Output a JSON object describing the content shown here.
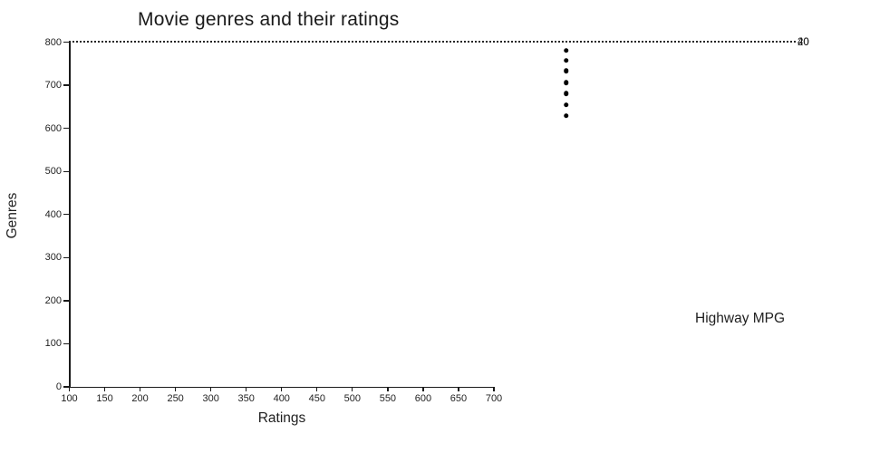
{
  "chart_data": {
    "type": "scatter",
    "title": "Movie genres and their ratings",
    "xlabel": "Ratings",
    "ylabel": "Genres",
    "xlim": [
      100,
      700
    ],
    "ylim": [
      0,
      800
    ],
    "x_ticks": [
      100,
      150,
      200,
      250,
      300,
      350,
      400,
      450,
      500,
      550,
      600,
      650,
      700
    ],
    "y_ticks": [
      0,
      100,
      200,
      300,
      400,
      500,
      600,
      700,
      800
    ],
    "grid": false,
    "points": [
      {
        "x": 802,
        "y": 781
      },
      {
        "x": 802,
        "y": 757
      },
      {
        "x": 802,
        "y": 733
      },
      {
        "x": 802,
        "y": 706
      },
      {
        "x": 802,
        "y": 681
      },
      {
        "x": 802,
        "y": 654
      },
      {
        "x": 802,
        "y": 629
      }
    ],
    "rules": [
      {
        "label": "40",
        "value": 40,
        "style": "dotted"
      },
      {
        "label": "20",
        "value": 20,
        "style": "dotted"
      }
    ],
    "rule_labels": [
      "40",
      "20"
    ],
    "legend_title": "Highway MPG",
    "legend_position": "right-middle",
    "colors": {
      "point": "#000000",
      "rule": "#262626",
      "axis": "#1b1b1b",
      "text": "#1f1f1f",
      "title": "#1a1a1a",
      "background": "#ffffff"
    }
  }
}
